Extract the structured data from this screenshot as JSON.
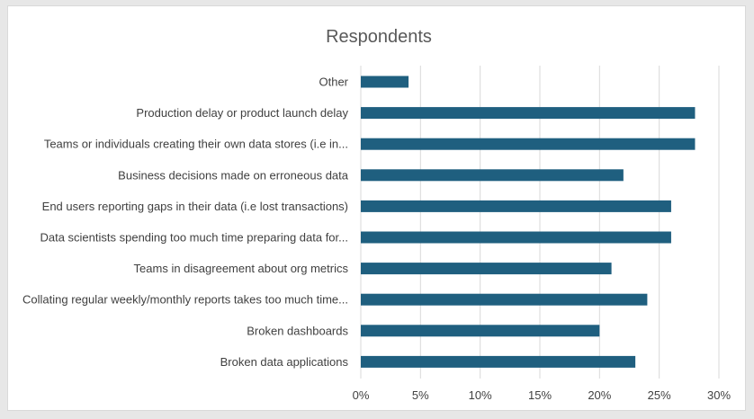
{
  "chart_data": {
    "type": "bar",
    "orientation": "horizontal",
    "title": "Respondents",
    "xlabel": "",
    "ylabel": "",
    "categories": [
      "Other",
      "Production delay or product launch delay",
      "Teams or individuals creating their own data stores (i.e in...",
      "Business decisions made on erroneous data",
      "End users reporting gaps in their data (i.e lost transactions)",
      "Data scientists spending too much time preparing data for...",
      "Teams in disagreement about org metrics",
      "Collating regular weekly/monthly reports takes too much time...",
      "Broken dashboards",
      "Broken data applications"
    ],
    "values": [
      0.04,
      0.28,
      0.28,
      0.22,
      0.26,
      0.26,
      0.21,
      0.24,
      0.2,
      0.23
    ],
    "xlim": [
      0,
      0.3
    ],
    "xticks": [
      0,
      0.05,
      0.1,
      0.15,
      0.2,
      0.25,
      0.3
    ],
    "xtick_labels": [
      "0%",
      "5%",
      "10%",
      "15%",
      "20%",
      "25%",
      "30%"
    ],
    "grid": "vertical",
    "legend": "none",
    "bar_color": "#1f5f7f"
  }
}
